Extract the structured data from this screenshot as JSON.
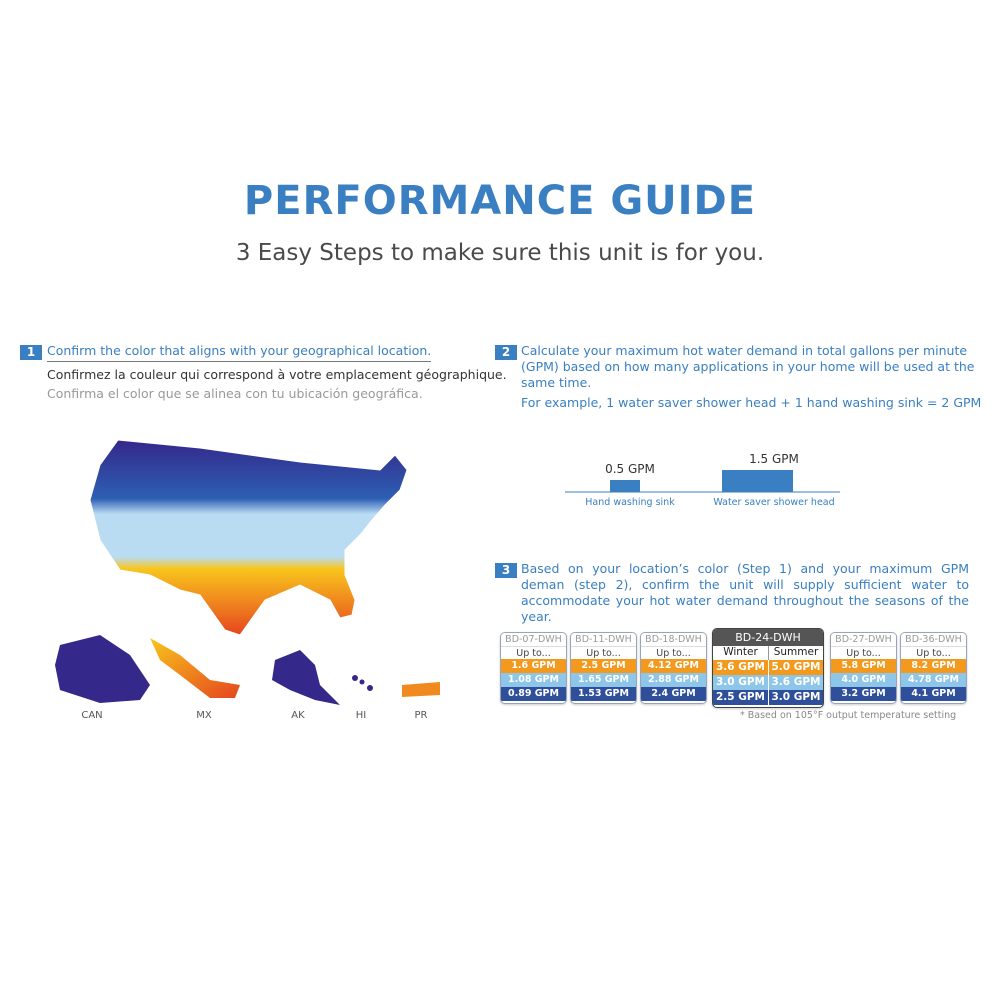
{
  "header": {
    "title": "PERFORMANCE GUIDE",
    "subtitle": "3 Easy Steps to make sure this unit is for you."
  },
  "step1": {
    "number": "1",
    "text_en": "Confirm the color that aligns with your geographical location.",
    "text_fr": "Confirmez la couleur qui correspond à votre emplacement géographique.",
    "text_es": "Confirma el color que se alinea con tu ubicación geográfica.",
    "map_labels": [
      "CAN",
      "MX",
      "AK",
      "HI",
      "PR"
    ]
  },
  "step2": {
    "number": "2",
    "text": "Calculate your maximum hot water demand in total gallons per minute (GPM) based on how many applications in your home will be used at the same time.",
    "example": "For example, 1 water saver shower head + 1 hand washing sink = 2 GPM",
    "fixtures": [
      {
        "gpm": "0.5 GPM",
        "label": "Hand washing sink"
      },
      {
        "gpm": "1.5 GPM",
        "label": "Water saver shower head"
      }
    ]
  },
  "step3": {
    "number": "3",
    "text": "Based on your location’s color (Step 1) and your maximum GPM deman (step 2), confirm the unit will supply sufficient water to accommodate your hot water demand throughout the seasons of the year.",
    "units": [
      {
        "model": "BD-07-DWH",
        "header": "Up to...",
        "rows": [
          "1.6 GPM",
          "1.08 GPM",
          "0.89 GPM"
        ]
      },
      {
        "model": "BD-11-DWH",
        "header": "Up to...",
        "rows": [
          "2.5 GPM",
          "1.65 GPM",
          "1.53 GPM"
        ]
      },
      {
        "model": "BD-18-DWH",
        "header": "Up to...",
        "rows": [
          "4.12 GPM",
          "2.88 GPM",
          "2.4 GPM"
        ]
      },
      {
        "model": "BD-24-DWH",
        "columns": [
          "Winter",
          "Summer"
        ],
        "rows": [
          [
            "3.6 GPM",
            "5.0 GPM"
          ],
          [
            "3.0 GPM",
            "3.6 GPM"
          ],
          [
            "2.5 GPM",
            "3.0 GPM"
          ]
        ]
      },
      {
        "model": "BD-27-DWH",
        "header": "Up to...",
        "rows": [
          "5.8 GPM",
          "4.0 GPM",
          "3.2 GPM"
        ]
      },
      {
        "model": "BD-36-DWH",
        "header": "Up to...",
        "rows": [
          "8.2 GPM",
          "4.78 GPM",
          "4.1 GPM"
        ]
      }
    ],
    "footnote": "* Based on 105°F output temperature setting"
  }
}
